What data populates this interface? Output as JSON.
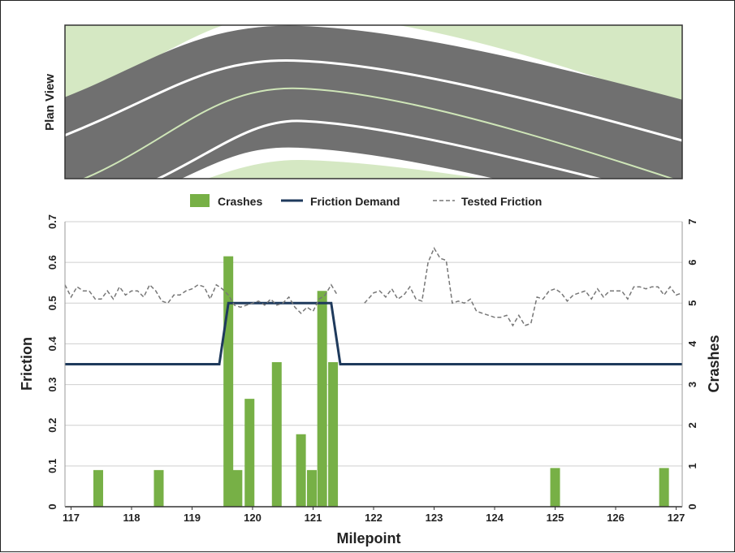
{
  "plan_view": {
    "label": "Plan View"
  },
  "chart_data": {
    "type": "bar",
    "xlabel": "Milepoint",
    "ylabel": "Friction",
    "ylabel_right": "Crashes",
    "xlim": [
      116.9,
      127.1
    ],
    "ylim": [
      0,
      0.7
    ],
    "ylim_right": [
      0,
      7
    ],
    "x_ticks": [
      117,
      118,
      119,
      120,
      121,
      122,
      123,
      124,
      125,
      126,
      127
    ],
    "y_ticks": [
      0,
      0.1,
      0.2,
      0.3,
      0.4,
      0.5,
      0.6,
      0.7
    ],
    "y_tick_labels": [
      "0",
      "0.1",
      "0.2",
      "0.3",
      "0.4",
      "0.5",
      "0.6",
      "0.7"
    ],
    "y_ticks_right": [
      0,
      1,
      2,
      3,
      4,
      5,
      6,
      7
    ],
    "grid": true,
    "legend_position": "top-center",
    "legend": [
      {
        "name": "Crashes",
        "kind": "bar",
        "color": "#77b046"
      },
      {
        "name": "Friction Demand",
        "kind": "line",
        "color": "#1f3a5c"
      },
      {
        "name": "Tested Friction",
        "kind": "dashed",
        "color": "#777777"
      }
    ],
    "series": [
      {
        "name": "Crashes",
        "type": "bar",
        "axis": "right",
        "color": "#77b046",
        "x": [
          117.45,
          118.45,
          119.6,
          119.75,
          119.95,
          120.4,
          120.8,
          120.98,
          121.15,
          121.33,
          125.0,
          126.8
        ],
        "values": [
          0.9,
          0.9,
          6.15,
          0.9,
          2.65,
          3.55,
          1.78,
          0.9,
          5.3,
          3.55,
          0.95,
          0.95
        ]
      },
      {
        "name": "Friction Demand",
        "type": "line",
        "axis": "left",
        "color": "#1f3a5c",
        "x": [
          116.9,
          119.45,
          119.6,
          121.3,
          121.45,
          127.1
        ],
        "values": [
          0.35,
          0.35,
          0.5,
          0.5,
          0.35,
          0.35
        ]
      },
      {
        "name": "Tested Friction",
        "type": "line",
        "style": "dashed",
        "axis": "left",
        "color": "#777777",
        "segments": [
          {
            "x": [
              116.9,
              117.0,
              117.1,
              117.2,
              117.3,
              117.4,
              117.5,
              117.6,
              117.7,
              117.8,
              117.9,
              118.0,
              118.1,
              118.2,
              118.3,
              118.4,
              118.5,
              118.6,
              118.7,
              118.8,
              118.9,
              119.0,
              119.1,
              119.2,
              119.3,
              119.4,
              119.5,
              119.6,
              119.7,
              119.8,
              119.9,
              120.0,
              120.1,
              120.2,
              120.3,
              120.4,
              120.5,
              120.6,
              120.7,
              120.8,
              120.9,
              121.0,
              121.1,
              121.2,
              121.3,
              121.4
            ],
            "values": [
              0.545,
              0.515,
              0.54,
              0.53,
              0.53,
              0.51,
              0.51,
              0.53,
              0.51,
              0.54,
              0.52,
              0.53,
              0.53,
              0.515,
              0.545,
              0.53,
              0.505,
              0.5,
              0.52,
              0.52,
              0.53,
              0.535,
              0.545,
              0.54,
              0.51,
              0.545,
              0.535,
              0.52,
              0.495,
              0.49,
              0.495,
              0.5,
              0.505,
              0.495,
              0.51,
              0.495,
              0.5,
              0.515,
              0.49,
              0.475,
              0.49,
              0.48,
              0.51,
              0.52,
              0.545,
              0.52
            ]
          },
          {
            "x": [
              121.85,
              122.0,
              122.1,
              122.2,
              122.3,
              122.4,
              122.5,
              122.6,
              122.7,
              122.8,
              122.9,
              123.0,
              123.1,
              123.2,
              123.3,
              123.4,
              123.5,
              123.6,
              123.7,
              123.8,
              123.9,
              124.0,
              124.1,
              124.2,
              124.3,
              124.4,
              124.5,
              124.6,
              124.7,
              124.8,
              124.9,
              125.0,
              125.1,
              125.2,
              125.3,
              125.4,
              125.5,
              125.6,
              125.7,
              125.8,
              125.9,
              126.0,
              126.1,
              126.2,
              126.3,
              126.4,
              126.5,
              126.6,
              126.7,
              126.8,
              126.9,
              127.0,
              127.1
            ],
            "values": [
              0.5,
              0.525,
              0.53,
              0.515,
              0.535,
              0.51,
              0.52,
              0.54,
              0.51,
              0.505,
              0.6,
              0.635,
              0.61,
              0.605,
              0.5,
              0.505,
              0.5,
              0.51,
              0.48,
              0.475,
              0.47,
              0.465,
              0.465,
              0.47,
              0.445,
              0.47,
              0.445,
              0.45,
              0.515,
              0.51,
              0.53,
              0.535,
              0.525,
              0.505,
              0.52,
              0.525,
              0.53,
              0.51,
              0.535,
              0.515,
              0.53,
              0.53,
              0.53,
              0.51,
              0.54,
              0.54,
              0.535,
              0.54,
              0.54,
              0.52,
              0.54,
              0.52,
              0.525
            ]
          }
        ]
      }
    ]
  }
}
